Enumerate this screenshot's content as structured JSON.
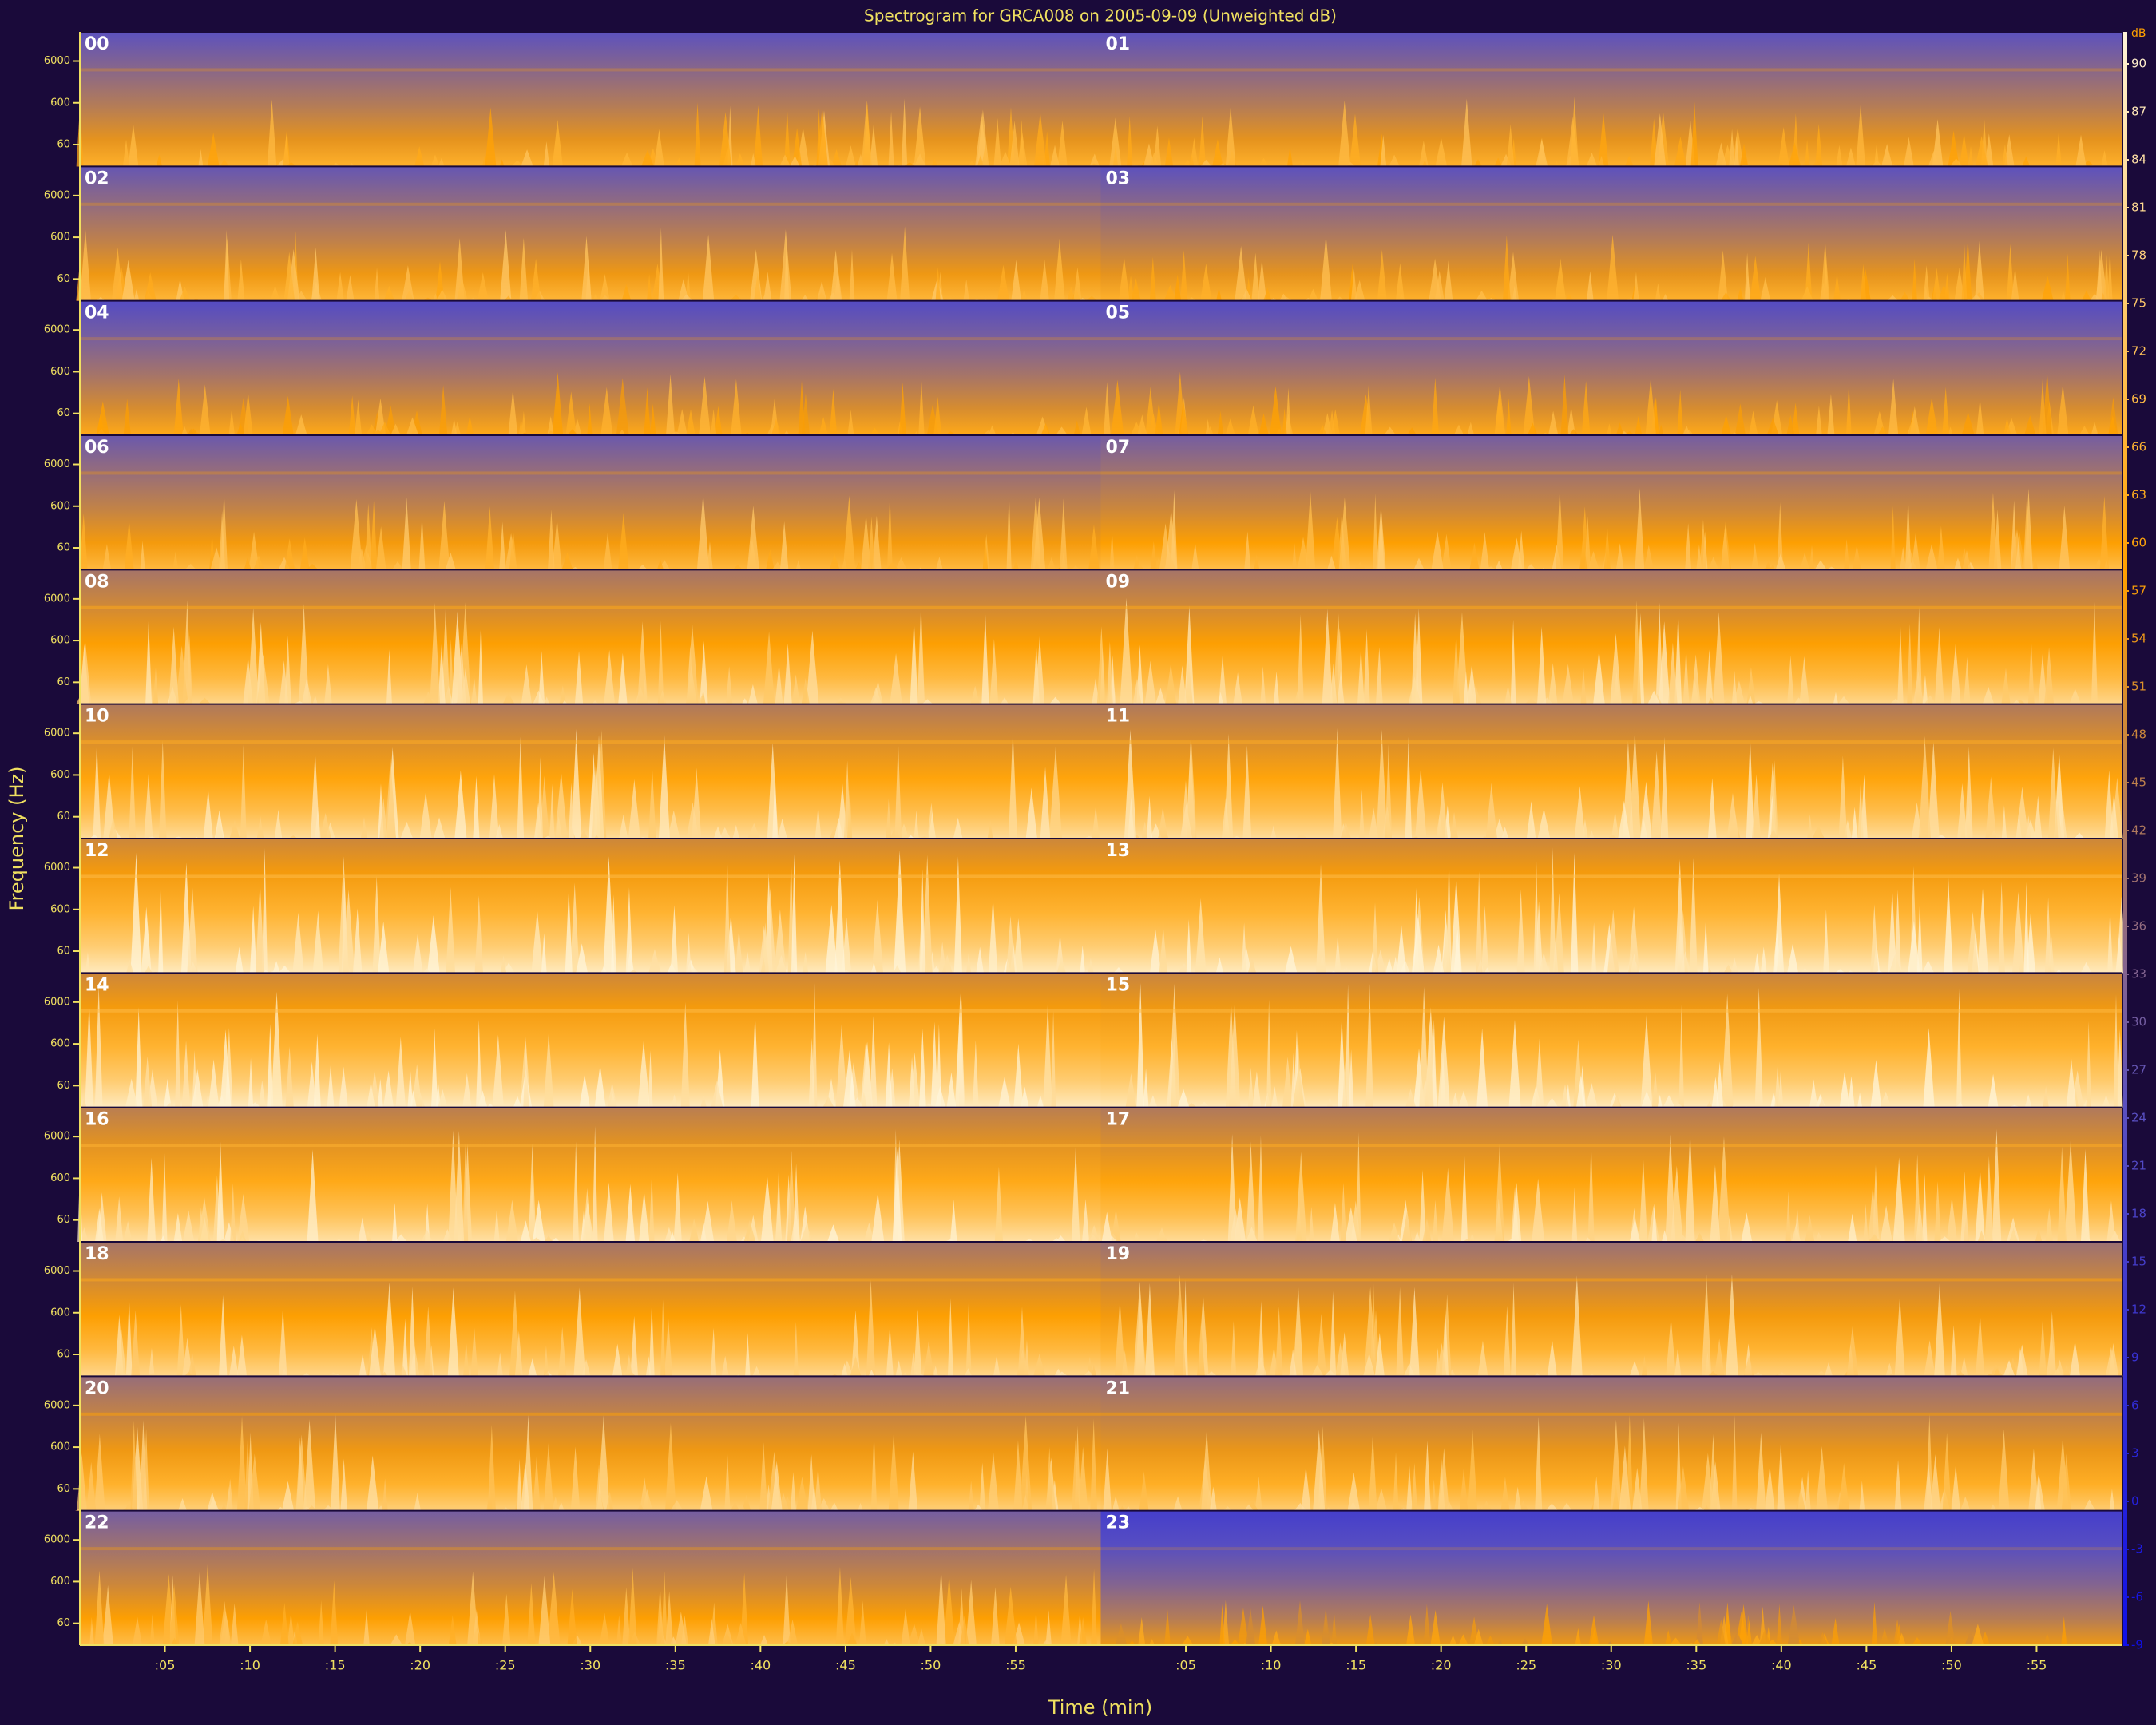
{
  "chart_data": {
    "type": "spectrogram",
    "title": "Spectrogram for GRCA008 on 2005-09-09 (Unweighted dB)",
    "xlabel": "Time (min)",
    "ylabel": "Frequency (Hz)",
    "categories": [
      "00",
      "01",
      "02",
      "03",
      "04",
      "05",
      "06",
      "07",
      "08",
      "09",
      "10",
      "11",
      "12",
      "13",
      "14",
      "15",
      "16",
      "17",
      "18",
      "19",
      "20",
      "21",
      "22",
      "23"
    ],
    "values": [
      55,
      55,
      57,
      55,
      52,
      52,
      58,
      60,
      70,
      70,
      72,
      72,
      78,
      78,
      78,
      77,
      74,
      72,
      70,
      68,
      67,
      66,
      60,
      45
    ],
    "xlim": [
      0,
      60
    ],
    "xticks": [
      {
        "value": 5,
        "label": ":05"
      },
      {
        "value": 10,
        "label": ":10"
      },
      {
        "value": 15,
        "label": ":15"
      },
      {
        "value": 20,
        "label": ":20"
      },
      {
        "value": 25,
        "label": ":25"
      },
      {
        "value": 30,
        "label": ":30"
      },
      {
        "value": 35,
        "label": ":35"
      },
      {
        "value": 40,
        "label": ":40"
      },
      {
        "value": 45,
        "label": ":45"
      },
      {
        "value": 50,
        "label": ":50"
      },
      {
        "value": 55,
        "label": ":55"
      }
    ],
    "ylim": [
      18,
      30000
    ],
    "yticks": [
      6000,
      600,
      60
    ],
    "log_y": true,
    "colorbar": {
      "label": "dB",
      "lim": [
        -9,
        92
      ],
      "ticks": [
        90,
        87,
        84,
        81,
        78,
        75,
        72,
        69,
        66,
        63,
        60,
        57,
        54,
        51,
        48,
        45,
        42,
        39,
        36,
        33,
        30,
        27,
        24,
        21,
        18,
        15,
        12,
        9,
        6,
        3,
        0,
        -3,
        -6,
        -9
      ]
    },
    "colormap": [
      "#1010e8",
      "#5a50c0",
      "#ffa000",
      "#fff4d8"
    ]
  }
}
